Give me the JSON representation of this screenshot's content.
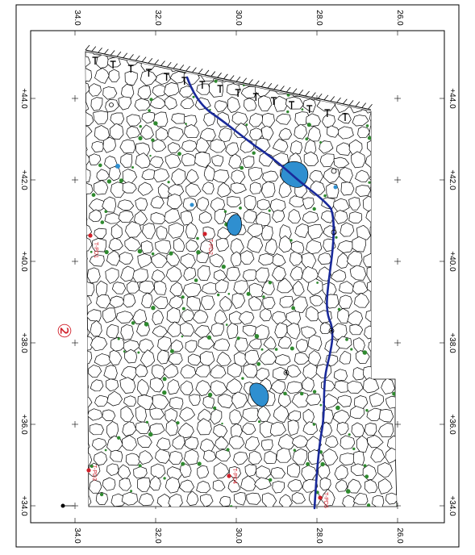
{
  "map": {
    "grid_x_labels": [
      "34.0",
      "32.0",
      "30.0",
      "28.0",
      "26.0"
    ],
    "grid_y_labels": [
      "+44.0",
      "+42.0",
      "+40.0",
      "+38.0",
      "+36.0",
      "+34.0"
    ],
    "section_marker": "②",
    "survey_points": [
      {
        "label": "T-PD1",
        "color": "#d0202a"
      },
      {
        "label": "T-PD2",
        "color": "#d0202a"
      },
      {
        "label": "T-PD3",
        "color": "#d0202a"
      },
      {
        "label": "T-PD4",
        "color": "#d0202a"
      },
      {
        "label": "T-PD5",
        "color": "#d0202a"
      }
    ],
    "colors": {
      "frame": "#000000",
      "stones_stroke": "#000000",
      "channel": "#1a2a9a",
      "water": "#2f8fd0",
      "moss": "#2f8a2f",
      "points": "#d0202a"
    },
    "icons": [
      "north-arrow-icon",
      "slope-hatch-icon",
      "spring-icon"
    ]
  }
}
